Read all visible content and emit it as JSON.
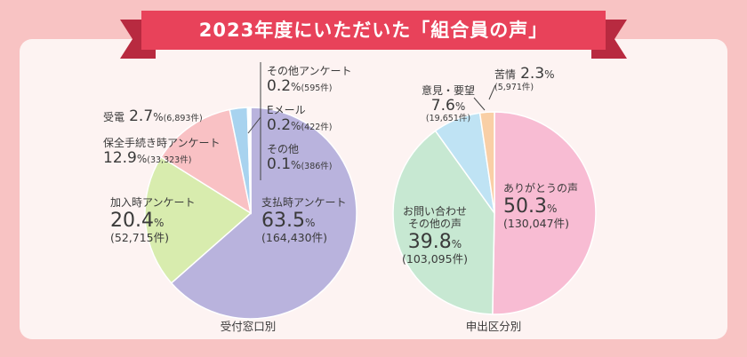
{
  "title": "2023年度にいただいた「組合員の声」",
  "colors": {
    "background": "#f8c3c3",
    "panel": "#fdf3f2",
    "banner": "#e8425a",
    "banner_dark": "#b82a40"
  },
  "chart_data": [
    {
      "type": "pie",
      "caption": "受付窓口別",
      "slices": [
        {
          "name": "支払時アンケート",
          "percent": 63.5,
          "count": "(164,430件)",
          "color": "#b9b3dd"
        },
        {
          "name": "加入時アンケート",
          "percent": 20.4,
          "count": "(52,715件)",
          "color": "#d8ecae"
        },
        {
          "name": "保全手続き時アンケート",
          "percent": 12.9,
          "count": "(33,323件)",
          "color": "#f9c1c4"
        },
        {
          "name": "受電",
          "percent": 2.7,
          "count": "(6,893件)",
          "color": "#a8d3ef"
        },
        {
          "name": "その他アンケート",
          "percent": 0.2,
          "count": "(595件)",
          "color": "#f7d08a"
        },
        {
          "name": "Eメール",
          "percent": 0.2,
          "count": "(422件)",
          "color": "#f7d08a"
        },
        {
          "name": "その他",
          "percent": 0.1,
          "count": "(386件)",
          "color": "#f7d08a"
        }
      ]
    },
    {
      "type": "pie",
      "caption": "申出区分別",
      "slices": [
        {
          "name": "ありがとうの声",
          "percent": 50.3,
          "count": "(130,047件)",
          "color": "#f8bcd3"
        },
        {
          "name": "お問い合わせその他の声",
          "percent": 39.8,
          "count": "(103,095件)",
          "color": "#c7e8d2"
        },
        {
          "name": "意見・要望",
          "percent": 7.6,
          "count": "(19,651件)",
          "color": "#bfe3f4"
        },
        {
          "name": "苦情",
          "percent": 2.3,
          "count": "(5,971件)",
          "color": "#f9cfa6"
        }
      ]
    }
  ],
  "labels": {
    "pct_unit": "%",
    "left": {
      "s0_pct": "63.5",
      "s1_pct": "20.4",
      "s2_pct": "12.9",
      "s3_pct": "2.7",
      "s4_pct": "0.2",
      "s5_pct": "0.2",
      "s6_pct": "0.1"
    },
    "right": {
      "s0_pct": "50.3",
      "s1_pct": "39.8",
      "s1_line1": "お問い合わせ",
      "s1_line2": "その他の声",
      "s2_pct": "7.6",
      "s3_pct": "2.3"
    }
  }
}
